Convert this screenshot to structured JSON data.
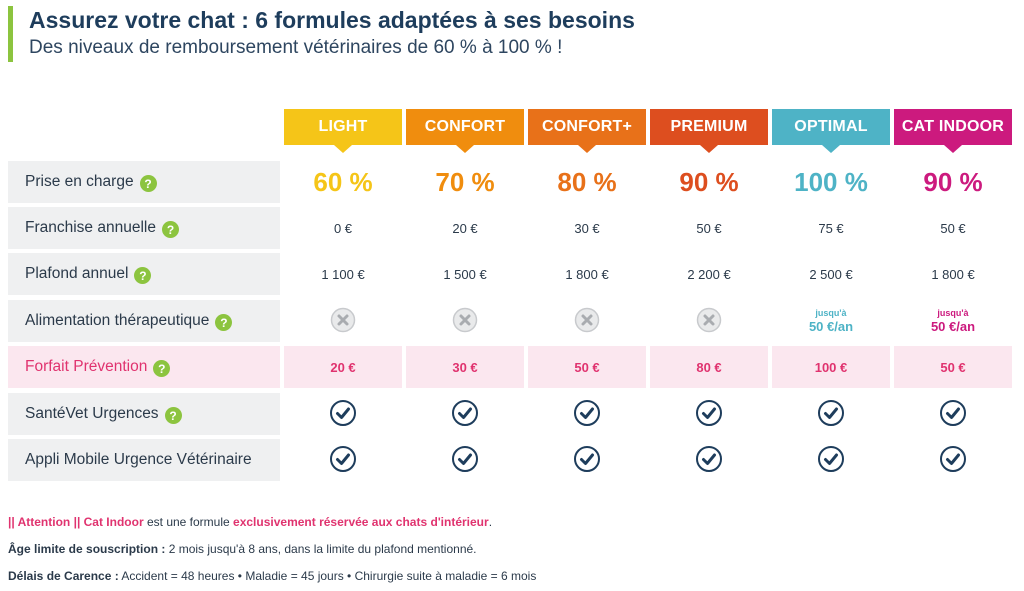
{
  "header": {
    "title": "Assurez votre chat : 6 formules adaptées à ses besoins",
    "subtitle": "Des niveaux de remboursement vétérinaires de 60 % à 100 % !"
  },
  "plans": [
    {
      "name": "LIGHT",
      "color": "#f5c518",
      "pct": "60 %",
      "franchise": "0 €",
      "plafond": "1 100 €",
      "alimentation": "no",
      "alim_small": "",
      "alim_big": "",
      "forfait": "20 €"
    },
    {
      "name": "CONFORT",
      "color": "#f08d0e",
      "pct": "70 %",
      "franchise": "20 €",
      "plafond": "1 500 €",
      "alimentation": "no",
      "alim_small": "",
      "alim_big": "",
      "forfait": "30 €"
    },
    {
      "name": "CONFORT+",
      "color": "#e87119",
      "pct": "80 %",
      "franchise": "30 €",
      "plafond": "1 800 €",
      "alimentation": "no",
      "alim_small": "",
      "alim_big": "",
      "forfait": "50 €"
    },
    {
      "name": "PREMIUM",
      "color": "#dd4e1f",
      "pct": "90 %",
      "franchise": "50 €",
      "plafond": "2 200 €",
      "alimentation": "no",
      "alim_small": "",
      "alim_big": "",
      "forfait": "80 €"
    },
    {
      "name": "OPTIMAL",
      "color": "#4eb3c6",
      "pct": "100 %",
      "franchise": "75 €",
      "plafond": "2 500 €",
      "alimentation": "yes",
      "alim_small": "jusqu'à",
      "alim_big": "50 €/an",
      "forfait": "100 €"
    },
    {
      "name": "CAT INDOOR",
      "color": "#cc1a7e",
      "pct": "90 %",
      "franchise": "50 €",
      "plafond": "1 800 €",
      "alimentation": "yes",
      "alim_small": "jusqu'à",
      "alim_big": "50 €/an",
      "forfait": "50 €"
    }
  ],
  "rows": {
    "prise": "Prise en charge",
    "franchise": "Franchise annuelle",
    "plafond": "Plafond annuel",
    "alimentation": "Alimentation thérapeutique",
    "forfait": "Forfait Prévention",
    "urgences": "SantéVet Urgences",
    "appli": "Appli Mobile Urgence Vétérinaire"
  },
  "help_glyph": "?",
  "icons": {
    "no": "cross-circle-icon",
    "yes": "check-circle-icon",
    "help": "question-icon"
  },
  "colors": {
    "accent_green": "#8cc43f",
    "pink_text": "#e0336f",
    "pink_bg": "#fbe7ef",
    "label_bg": "#eff0f1",
    "navy": "#1e3d5c"
  },
  "footer": {
    "line1_a": "|| Attention || Cat Indoor",
    "line1_b": " est une formule ",
    "line1_c": "exclusivement réservée aux chats d'intérieur",
    "line1_d": ".",
    "line2_label": "Âge limite de souscription :",
    "line2_text": " 2 mois jusqu'à 8 ans, dans la limite du plafond mentionné.",
    "line3_label": "Délais de Carence :",
    "line3_text": " Accident = 48 heures • Maladie = 45 jours • Chirurgie suite à maladie = 6 mois"
  }
}
